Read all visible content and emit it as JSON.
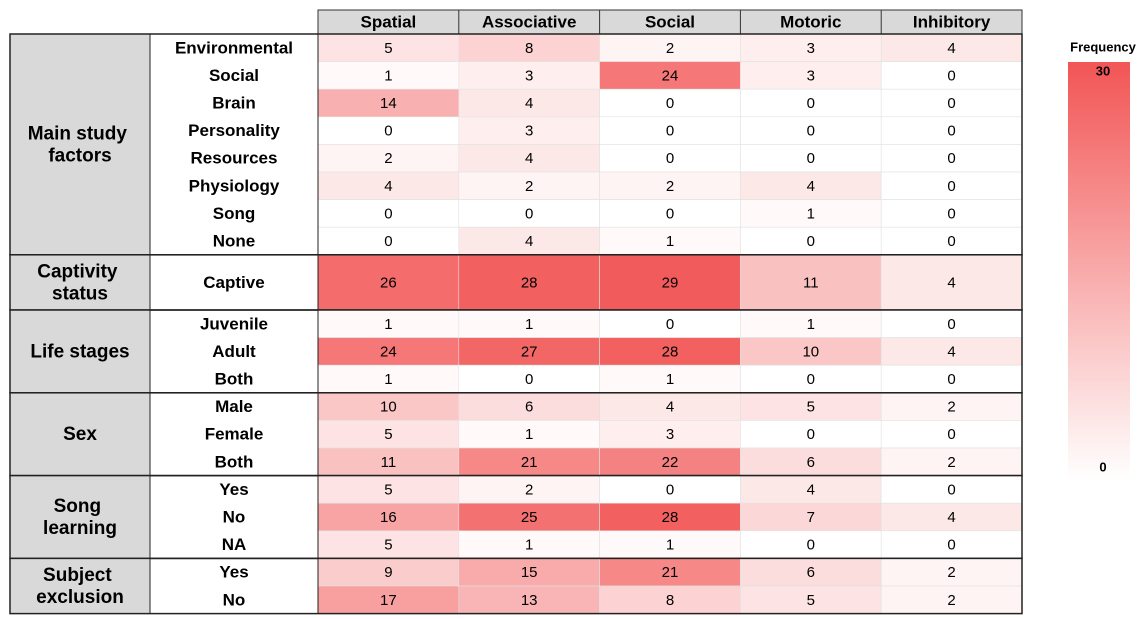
{
  "chart_data": {
    "type": "heatmap",
    "columns": [
      "Spatial",
      "Associative",
      "Social",
      "Motoric",
      "Inhibitory"
    ],
    "groups": [
      {
        "name": "Main study factors",
        "rows": [
          "Environmental",
          "Social",
          "Brain",
          "Personality",
          "Resources",
          "Physiology",
          "Song",
          "None"
        ],
        "values": [
          [
            5,
            8,
            2,
            3,
            4
          ],
          [
            1,
            3,
            24,
            3,
            0
          ],
          [
            14,
            4,
            0,
            0,
            0
          ],
          [
            0,
            3,
            0,
            0,
            0
          ],
          [
            2,
            4,
            0,
            0,
            0
          ],
          [
            4,
            2,
            2,
            4,
            0
          ],
          [
            0,
            0,
            0,
            1,
            0
          ],
          [
            0,
            4,
            1,
            0,
            0
          ]
        ]
      },
      {
        "name": "Captivity status",
        "rows": [
          "Captive"
        ],
        "values": [
          [
            26,
            28,
            29,
            11,
            4
          ]
        ]
      },
      {
        "name": "Life stages",
        "rows": [
          "Juvenile",
          "Adult",
          "Both"
        ],
        "values": [
          [
            1,
            1,
            0,
            1,
            0
          ],
          [
            24,
            27,
            28,
            10,
            4
          ],
          [
            1,
            0,
            1,
            0,
            0
          ]
        ]
      },
      {
        "name": "Sex",
        "rows": [
          "Male",
          "Female",
          "Both"
        ],
        "values": [
          [
            10,
            6,
            4,
            5,
            2
          ],
          [
            5,
            1,
            3,
            0,
            0
          ],
          [
            11,
            21,
            22,
            6,
            2
          ]
        ]
      },
      {
        "name": "Song learning",
        "rows": [
          "Yes",
          "No",
          "NA"
        ],
        "values": [
          [
            5,
            2,
            0,
            4,
            0
          ],
          [
            16,
            25,
            28,
            7,
            4
          ],
          [
            5,
            1,
            1,
            0,
            0
          ]
        ]
      },
      {
        "name": "Subject exclusion",
        "rows": [
          "Yes",
          "No"
        ],
        "values": [
          [
            9,
            15,
            21,
            6,
            2
          ],
          [
            17,
            13,
            8,
            5,
            2
          ]
        ]
      }
    ],
    "colorbar_title": "Frequency",
    "zlim": [
      0,
      30
    ],
    "zticks": [
      0,
      30
    ],
    "color_min": "#ffffff",
    "color_max": "#f25555"
  }
}
